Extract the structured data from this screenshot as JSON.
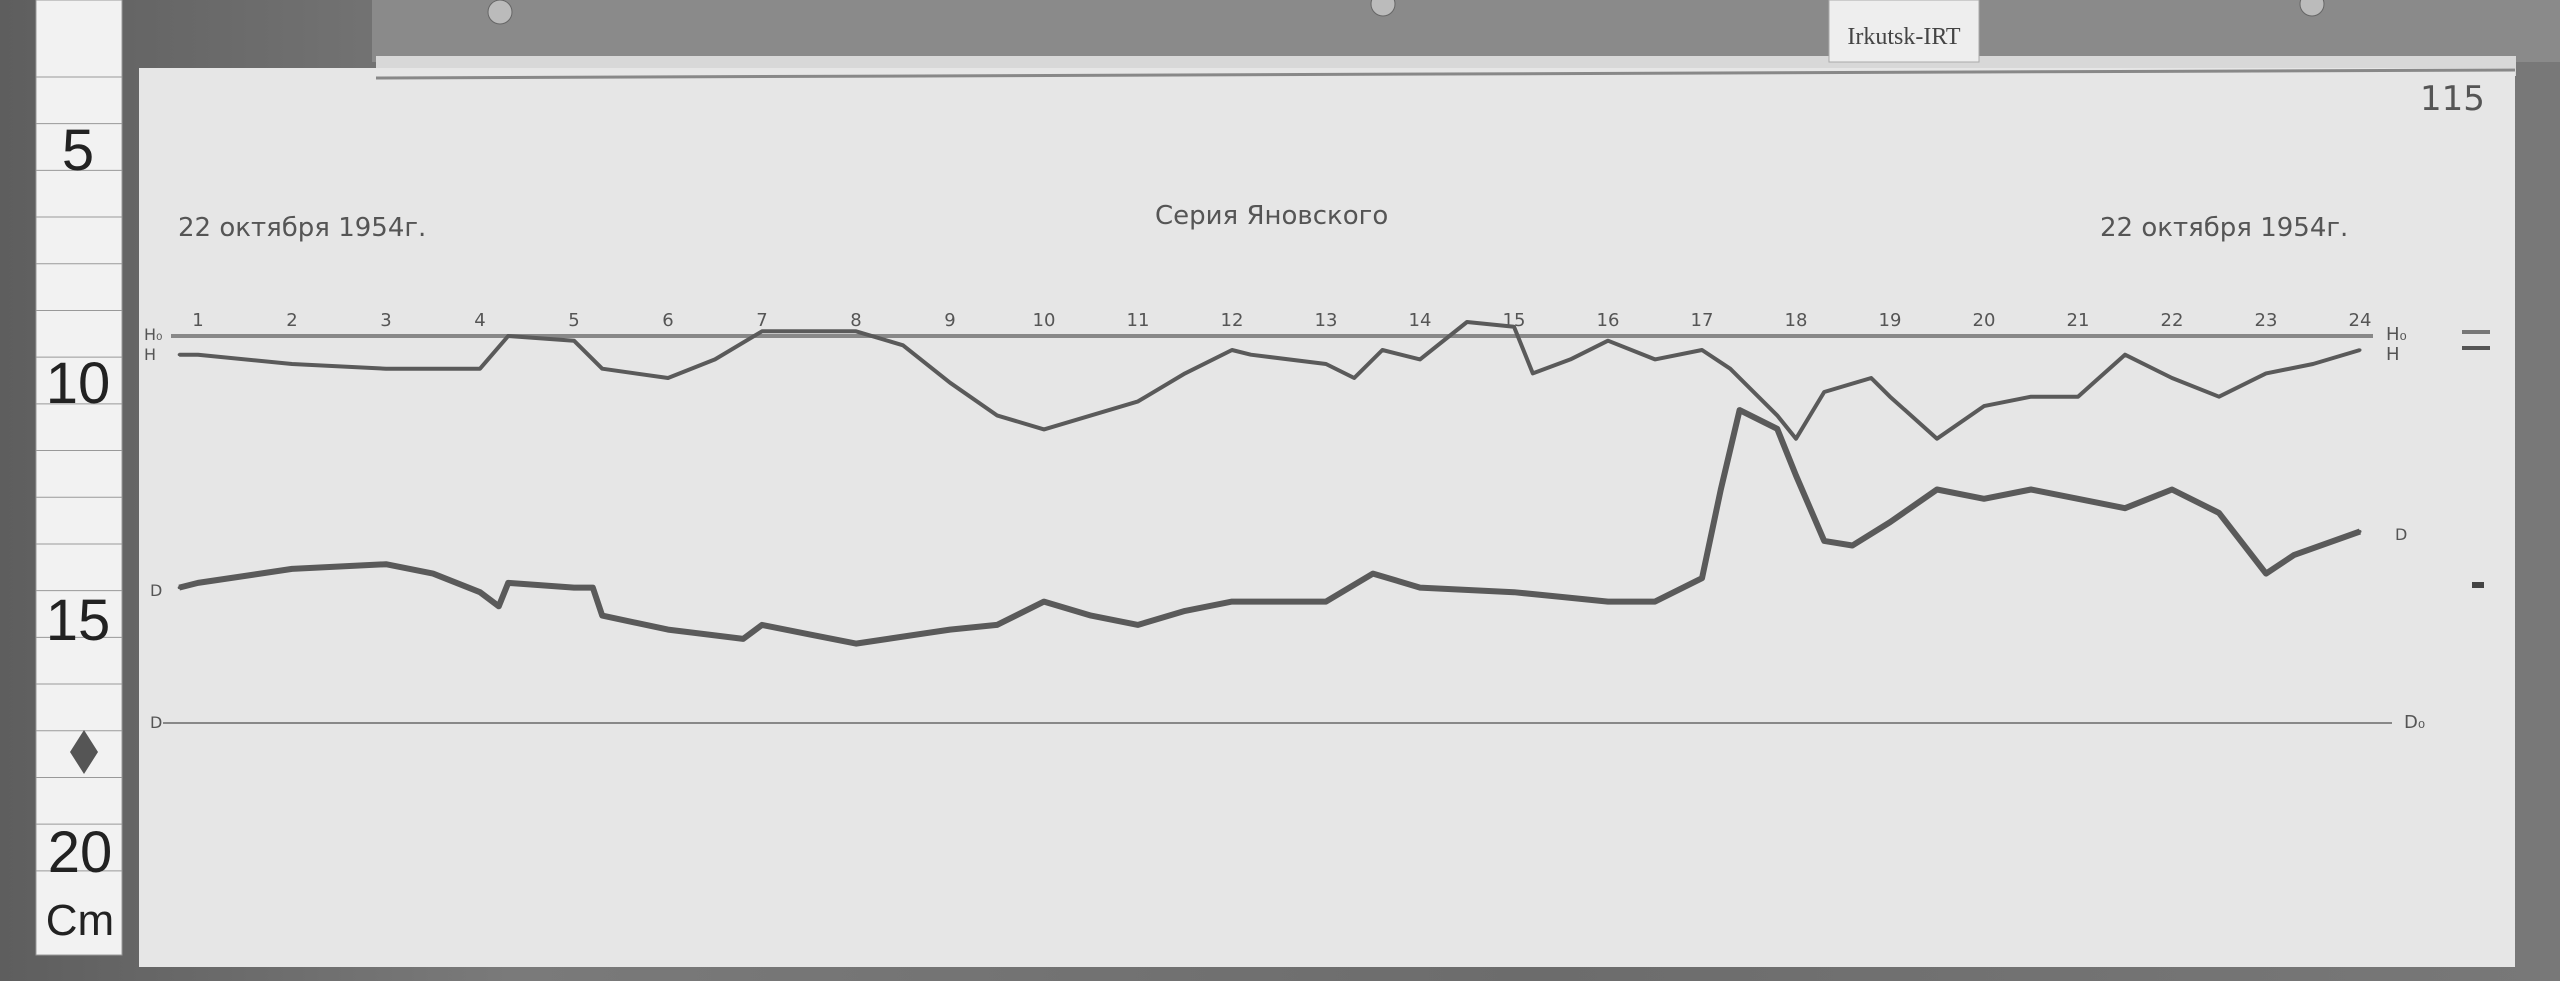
{
  "label_tag": "Irkutsk-IRT",
  "sheet_number": "115",
  "ruler": {
    "marks": [
      "5",
      "10",
      "15",
      "20"
    ],
    "unit": "Cm"
  },
  "chart_data": {
    "type": "line",
    "title": "Серия Яновского",
    "date_left": "22 октября 1954г.",
    "date_right": "22 октября 1954г.",
    "x_tick_labels": [
      "1",
      "2",
      "3",
      "4",
      "5",
      "6",
      "7",
      "8",
      "9",
      "10",
      "11",
      "12",
      "13",
      "14",
      "15",
      "16",
      "17",
      "18",
      "19",
      "20",
      "21",
      "22",
      "23",
      "24"
    ],
    "xlim": [
      0.8,
      24
    ],
    "baseline_labels": {
      "h0": "H₀",
      "h": "H",
      "d": "D",
      "d0": "D₀"
    },
    "y_unit": "cm",
    "grid": false,
    "series": [
      {
        "name": "H",
        "x": [
          0.8,
          1,
          2,
          3,
          4,
          4.3,
          5,
          5.3,
          6,
          6.5,
          7,
          8,
          8.5,
          9,
          9.5,
          10,
          10.5,
          11,
          11.5,
          12,
          12.2,
          13,
          13.3,
          13.6,
          14,
          14.5,
          15,
          15.2,
          15.6,
          16,
          16.5,
          17,
          17.3,
          17.8,
          18,
          18.3,
          18.8,
          19,
          19.5,
          20,
          20.5,
          21,
          21.5,
          22,
          22.5,
          23,
          23.5,
          24
        ],
        "y": [
          0.4,
          0.4,
          0.6,
          0.7,
          0.7,
          0.0,
          0.1,
          0.7,
          0.9,
          0.5,
          -0.1,
          -0.1,
          0.2,
          1.0,
          1.7,
          2.0,
          1.7,
          1.4,
          0.8,
          0.3,
          0.4,
          0.6,
          0.9,
          0.3,
          0.5,
          -0.3,
          -0.2,
          0.8,
          0.5,
          0.1,
          0.5,
          0.3,
          0.7,
          1.7,
          2.2,
          1.2,
          0.9,
          1.3,
          2.2,
          1.5,
          1.3,
          1.3,
          0.4,
          0.9,
          1.3,
          0.8,
          0.6,
          0.3
        ]
      },
      {
        "name": "D",
        "x": [
          0.8,
          1,
          2,
          3,
          3.5,
          4,
          4.2,
          4.3,
          5,
          5.2,
          5.3,
          6,
          6.8,
          7,
          7.5,
          8,
          9,
          9.5,
          10,
          10.5,
          11,
          11.5,
          12,
          13,
          13.5,
          14,
          15,
          15.5,
          16,
          16.5,
          17,
          17.2,
          17.4,
          17.8,
          18,
          18.3,
          18.6,
          19,
          19.5,
          20,
          20.5,
          21,
          21.5,
          22,
          22.5,
          23,
          23.3,
          24
        ],
        "y": [
          2.9,
          3.0,
          3.3,
          3.4,
          3.2,
          2.8,
          2.5,
          3.0,
          2.9,
          2.9,
          2.3,
          2.0,
          1.8,
          2.1,
          1.9,
          1.7,
          2.0,
          2.1,
          2.6,
          2.3,
          2.1,
          2.4,
          2.6,
          2.6,
          3.2,
          2.9,
          2.8,
          2.7,
          2.6,
          2.6,
          3.1,
          5.0,
          6.7,
          6.3,
          5.3,
          3.9,
          3.8,
          4.3,
          5.0,
          4.8,
          5.0,
          4.8,
          4.6,
          5.0,
          4.5,
          3.2,
          3.6,
          4.1
        ]
      }
    ],
    "colors": {
      "paper": "#e6e6e6",
      "trace": "#5a5a5a"
    }
  }
}
